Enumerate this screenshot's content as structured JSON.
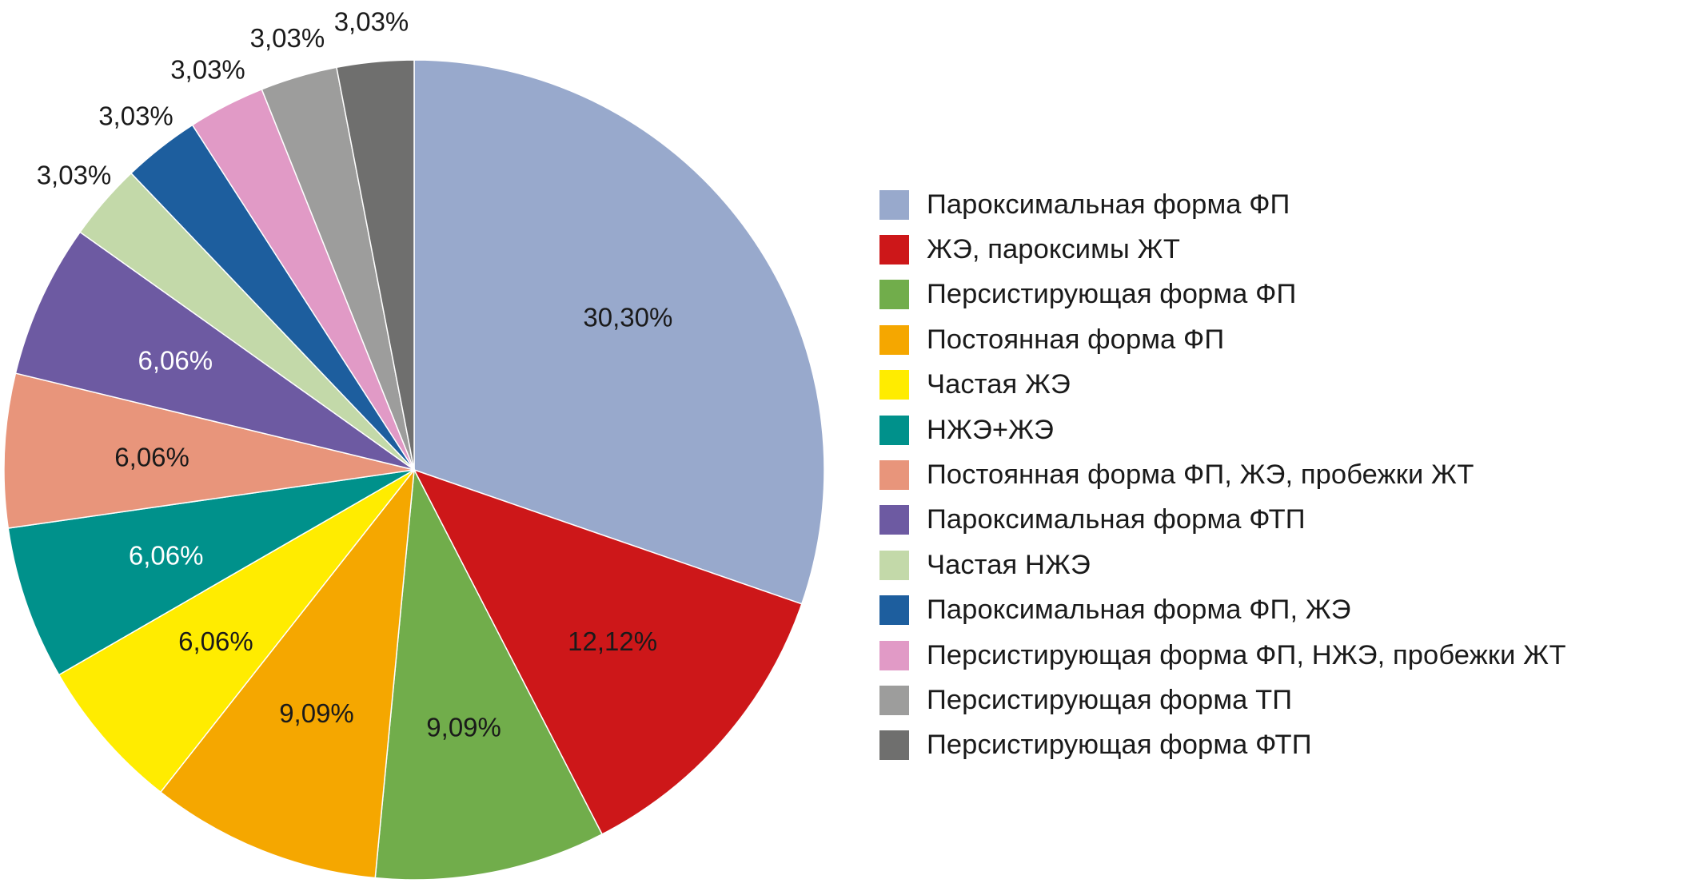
{
  "chart_data": {
    "type": "pie",
    "legend_position": "right",
    "start_angle_deg": 0,
    "direction": "clockwise",
    "slices": [
      {
        "label": "Пароксимальная форма ФП",
        "value": 30.3,
        "value_label": "30,30%",
        "color": "#98a9cc",
        "label_color": "#1a1a1a",
        "label_position": "inside"
      },
      {
        "label": "ЖЭ, пароксимы ЖТ",
        "value": 12.12,
        "value_label": "12,12%",
        "color": "#cd1719",
        "label_color": "#1a1a1a",
        "label_position": "inside"
      },
      {
        "label": "Персистирующая форма ФП",
        "value": 9.09,
        "value_label": "9,09%",
        "color": "#71ad4b",
        "label_color": "#1a1a1a",
        "label_position": "inside"
      },
      {
        "label": "Постоянная форма ФП",
        "value": 9.09,
        "value_label": "9,09%",
        "color": "#f5a700",
        "label_color": "#1a1a1a",
        "label_position": "inside"
      },
      {
        "label": "Частая ЖЭ",
        "value": 6.06,
        "value_label": "6,06%",
        "color": "#ffec00",
        "label_color": "#1a1a1a",
        "label_position": "inside"
      },
      {
        "label": "НЖЭ+ЖЭ",
        "value": 6.06,
        "value_label": "6,06%",
        "color": "#00918b",
        "label_color": "#ffffff",
        "label_position": "inside"
      },
      {
        "label": "Постоянная форма ФП, ЖЭ, пробежки ЖТ",
        "value": 6.06,
        "value_label": "6,06%",
        "color": "#e8957b",
        "label_color": "#1a1a1a",
        "label_position": "inside"
      },
      {
        "label": "Пароксимальная форма ФТП",
        "value": 6.06,
        "value_label": "6,06%",
        "color": "#6d5aa2",
        "label_color": "#ffffff",
        "label_position": "inside"
      },
      {
        "label": "Частая НЖЭ",
        "value": 3.03,
        "value_label": "3,03%",
        "color": "#c3d9a9",
        "label_color": "#1a1a1a",
        "label_position": "outside"
      },
      {
        "label": "Пароксимальная форма ФП, ЖЭ",
        "value": 3.03,
        "value_label": "3,03%",
        "color": "#1d5e9e",
        "label_color": "#1a1a1a",
        "label_position": "outside"
      },
      {
        "label": "Персистирующая форма ФП, НЖЭ, пробежки ЖТ",
        "value": 3.03,
        "value_label": "3,03%",
        "color": "#e19ac6",
        "label_color": "#1a1a1a",
        "label_position": "outside"
      },
      {
        "label": "Персистирующая форма ТП",
        "value": 3.03,
        "value_label": "3,03%",
        "color": "#9d9d9c",
        "label_color": "#1a1a1a",
        "label_position": "outside"
      },
      {
        "label": "Персистирующая форма ФТП",
        "value": 3.03,
        "value_label": "3,03%",
        "color": "#6f6f6e",
        "label_color": "#1a1a1a",
        "label_position": "outside"
      }
    ]
  }
}
